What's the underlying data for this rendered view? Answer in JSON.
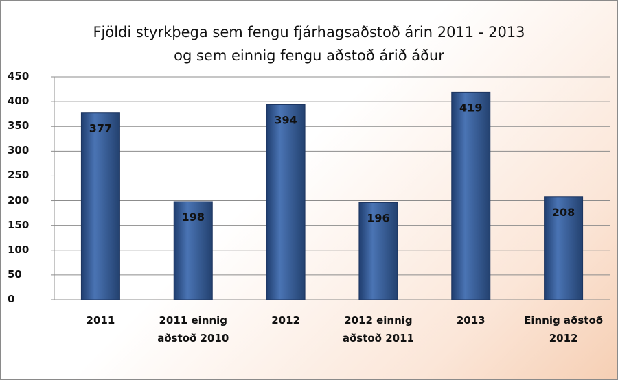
{
  "chart_data": {
    "type": "bar",
    "title": [
      "Fjöldi styrkþega sem fengu fjárhagsaðstoð árin 2011 - 2013",
      "og sem einnig fengu aðstoð árið áður"
    ],
    "categories": [
      "2011",
      "2011 einnig aðstoð 2010",
      "2012",
      "2012 einnig aðstoð 2011",
      "2013",
      "Einnig aðstoð 2012"
    ],
    "values": [
      377,
      198,
      394,
      196,
      419,
      208
    ],
    "color": "#3c629e",
    "ylim": [
      0,
      450
    ],
    "yticks": [
      0,
      50,
      100,
      150,
      200,
      250,
      300,
      350,
      400,
      450
    ],
    "grid": true
  }
}
